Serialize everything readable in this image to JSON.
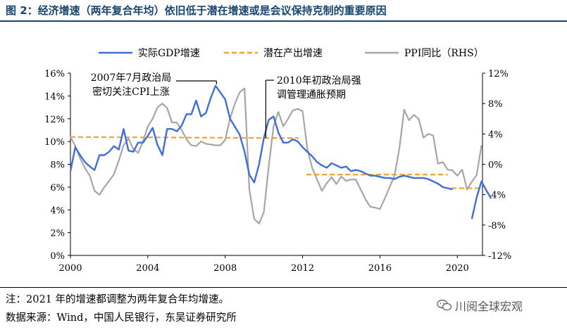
{
  "title": "图 2：经济增速（两年复合年均）依旧低于潜在增速或是会议保持克制的重要原因",
  "note": "注：2021 年的增速都调整为两年复合年均增速。",
  "source": "数据来源：Wind，中国人民银行，东吴证券研究所",
  "watermark": "川阅全球宏观",
  "colors": {
    "title": "#17456f",
    "gdp": "#3e6fd8",
    "potential": "#f5a030",
    "ppi": "#a6a6a6"
  },
  "chart_data": {
    "type": "line",
    "title": "",
    "xlabel": "",
    "ylabel": "",
    "xlim": [
      2000,
      2021.3
    ],
    "xticks": [
      2000,
      2004,
      2008,
      2012,
      2016,
      2020
    ],
    "xtick_labels": [
      "2000",
      "2004",
      "2008",
      "2012",
      "2016",
      "2020"
    ],
    "ylim": [
      0,
      16
    ],
    "yticks": [
      0,
      2,
      4,
      6,
      8,
      10,
      12,
      14,
      16
    ],
    "ytick_labels": [
      "0%",
      "2%",
      "4%",
      "6%",
      "8%",
      "10%",
      "12%",
      "14%",
      "16%"
    ],
    "y2lim": [
      -12,
      12
    ],
    "y2ticks": [
      -12,
      -8,
      -4,
      0,
      4,
      8,
      12
    ],
    "y2tick_labels": [
      "-12%",
      "-8%",
      "-4%",
      "0%",
      "4%",
      "8%",
      "12%"
    ],
    "legend_position": "top",
    "series": [
      {
        "name": "实际GDP增速",
        "axis": "left",
        "style": "solid",
        "points": [
          [
            2000,
            7.4
          ],
          [
            2000.25,
            9.5
          ],
          [
            2000.5,
            8.8
          ],
          [
            2000.75,
            8.2
          ],
          [
            2001,
            7.8
          ],
          [
            2001.25,
            7.5
          ],
          [
            2001.5,
            8.8
          ],
          [
            2001.75,
            8.8
          ],
          [
            2002,
            9.1
          ],
          [
            2002.25,
            9.6
          ],
          [
            2002.5,
            9.3
          ],
          [
            2002.75,
            11.1
          ],
          [
            2003,
            9.2
          ],
          [
            2003.25,
            9.1
          ],
          [
            2003.5,
            9.9
          ],
          [
            2003.75,
            9.9
          ],
          [
            2004,
            10.5
          ],
          [
            2004.25,
            11.2
          ],
          [
            2004.5,
            9.7
          ],
          [
            2004.75,
            8.8
          ],
          [
            2005,
            11.1
          ],
          [
            2005.25,
            11.1
          ],
          [
            2005.5,
            10.9
          ],
          [
            2005.75,
            11.4
          ],
          [
            2006,
            12.4
          ],
          [
            2006.25,
            12.4
          ],
          [
            2006.5,
            13.6
          ],
          [
            2006.75,
            12.2
          ],
          [
            2007,
            12.5
          ],
          [
            2007.25,
            13.8
          ],
          [
            2007.5,
            14.9
          ],
          [
            2007.75,
            14.3
          ],
          [
            2008,
            13.7
          ],
          [
            2008.25,
            12.0
          ],
          [
            2008.5,
            11.3
          ],
          [
            2008.75,
            10.6
          ],
          [
            2009,
            9.1
          ],
          [
            2009.25,
            7.1
          ],
          [
            2009.5,
            6.4
          ],
          [
            2009.75,
            8.0
          ],
          [
            2010,
            10.3
          ],
          [
            2010.25,
            11.9
          ],
          [
            2010.5,
            12.2
          ],
          [
            2010.75,
            10.8
          ],
          [
            2011,
            9.9
          ],
          [
            2011.25,
            9.9
          ],
          [
            2011.5,
            10.2
          ],
          [
            2011.75,
            10.0
          ],
          [
            2012,
            9.5
          ],
          [
            2012.25,
            9.1
          ],
          [
            2012.5,
            8.7
          ],
          [
            2012.75,
            8.2
          ],
          [
            2013,
            7.9
          ],
          [
            2013.25,
            7.7
          ],
          [
            2013.5,
            8.1
          ],
          [
            2013.75,
            7.9
          ],
          [
            2014,
            7.7
          ],
          [
            2014.25,
            7.8
          ],
          [
            2014.5,
            7.4
          ],
          [
            2014.75,
            7.5
          ],
          [
            2015,
            7.4
          ],
          [
            2015.25,
            7.2
          ],
          [
            2015.5,
            7.0
          ],
          [
            2015.75,
            7.0
          ],
          [
            2016,
            6.9
          ],
          [
            2016.25,
            6.8
          ],
          [
            2016.5,
            6.8
          ],
          [
            2016.75,
            6.7
          ],
          [
            2017,
            6.9
          ],
          [
            2017.25,
            7.0
          ],
          [
            2017.5,
            6.9
          ],
          [
            2017.75,
            6.8
          ],
          [
            2018,
            6.8
          ],
          [
            2018.25,
            6.8
          ],
          [
            2018.5,
            6.7
          ],
          [
            2018.75,
            6.5
          ],
          [
            2019,
            6.3
          ],
          [
            2019.25,
            6.0
          ],
          [
            2019.5,
            5.9
          ],
          [
            2019.75,
            5.8
          ],
          [
            2020.75,
            3.2
          ],
          [
            2021,
            5.1
          ],
          [
            2021.25,
            6.5
          ],
          [
            2021.5,
            5.7
          ],
          [
            2021.75,
            5.0
          ]
        ]
      },
      {
        "name": "潜在产出增速",
        "axis": "left",
        "style": "dashed",
        "segments": [
          [
            [
              2000,
              10.4
            ],
            [
              2011.8,
              10.3
            ]
          ],
          [
            [
              2012.2,
              7.1
            ],
            [
              2019.5,
              7.1
            ]
          ],
          [
            [
              2019.7,
              5.9
            ],
            [
              2021.3,
              5.9
            ]
          ]
        ]
      },
      {
        "name": "PPI同比（RHS）",
        "axis": "right",
        "style": "solid",
        "points": [
          [
            2000,
            3.6
          ],
          [
            2000.25,
            2.4
          ],
          [
            2000.5,
            0.8
          ],
          [
            2000.75,
            -0.5
          ],
          [
            2001,
            -1.5
          ],
          [
            2001.25,
            -3.5
          ],
          [
            2001.5,
            -4.0
          ],
          [
            2001.75,
            -3.0
          ],
          [
            2002,
            -2.2
          ],
          [
            2002.25,
            -1.3
          ],
          [
            2002.5,
            0.5
          ],
          [
            2002.75,
            2.5
          ],
          [
            2003,
            3.4
          ],
          [
            2003.25,
            2.0
          ],
          [
            2003.5,
            1.5
          ],
          [
            2003.75,
            3.0
          ],
          [
            2004,
            5.0
          ],
          [
            2004.25,
            6.0
          ],
          [
            2004.5,
            7.5
          ],
          [
            2004.75,
            8.0
          ],
          [
            2005,
            7.4
          ],
          [
            2005.25,
            5.5
          ],
          [
            2005.5,
            5.5
          ],
          [
            2005.75,
            4.5
          ],
          [
            2006,
            3.3
          ],
          [
            2006.25,
            2.5
          ],
          [
            2006.5,
            2.4
          ],
          [
            2006.75,
            3.0
          ],
          [
            2007,
            2.7
          ],
          [
            2007.25,
            2.6
          ],
          [
            2007.5,
            2.5
          ],
          [
            2007.75,
            2.5
          ],
          [
            2008,
            3.2
          ],
          [
            2008.25,
            6.0
          ],
          [
            2008.5,
            8.0
          ],
          [
            2008.75,
            9.5
          ],
          [
            2009,
            10.0
          ],
          [
            2009.25,
            -3.3
          ],
          [
            2009.5,
            -7.2
          ],
          [
            2009.75,
            -7.8
          ],
          [
            2010,
            -6.3
          ],
          [
            2010.25,
            -0.3
          ],
          [
            2010.5,
            5.0
          ],
          [
            2010.75,
            6.9
          ],
          [
            2011,
            5.0
          ],
          [
            2011.25,
            6.0
          ],
          [
            2011.5,
            7.1
          ],
          [
            2011.75,
            7.3
          ],
          [
            2012,
            7.0
          ],
          [
            2012.25,
            2.0
          ],
          [
            2012.5,
            -0.5
          ],
          [
            2012.75,
            -2.0
          ],
          [
            2013,
            -3.5
          ],
          [
            2013.25,
            -2.5
          ],
          [
            2013.5,
            -1.7
          ],
          [
            2013.75,
            -2.6
          ],
          [
            2014,
            -1.6
          ],
          [
            2014.25,
            -2.2
          ],
          [
            2014.5,
            -2.0
          ],
          [
            2014.75,
            -2.0
          ],
          [
            2015,
            -3.3
          ],
          [
            2015.25,
            -4.6
          ],
          [
            2015.5,
            -5.6
          ],
          [
            2015.75,
            -5.7
          ],
          [
            2016,
            -5.9
          ],
          [
            2016.25,
            -4.5
          ],
          [
            2016.5,
            -3.0
          ],
          [
            2016.75,
            -1.5
          ],
          [
            2017,
            2.0
          ],
          [
            2017.25,
            7.2
          ],
          [
            2017.5,
            5.8
          ],
          [
            2017.75,
            6.5
          ],
          [
            2018,
            6.0
          ],
          [
            2018.25,
            3.5
          ],
          [
            2018.5,
            4.0
          ],
          [
            2018.75,
            3.8
          ],
          [
            2019,
            0.1
          ],
          [
            2019.25,
            0.3
          ],
          [
            2019.5,
            -0.7
          ],
          [
            2019.75,
            -0.8
          ],
          [
            2020,
            -1.5
          ],
          [
            2020.25,
            -0.7
          ],
          [
            2020.5,
            -3.3
          ],
          [
            2020.75,
            -2.3
          ],
          [
            2021,
            -1.4
          ],
          [
            2021.25,
            2.5
          ]
        ]
      }
    ],
    "annotations": [
      {
        "lines": [
          "2007年7月政治局",
          "密切关注CPI上涨"
        ],
        "at": [
          2007.55,
          14.9
        ]
      },
      {
        "lines": [
          "2010年初政治局强",
          "调管理通胀预期"
        ],
        "at": [
          2010.1,
          10.3
        ]
      }
    ]
  }
}
